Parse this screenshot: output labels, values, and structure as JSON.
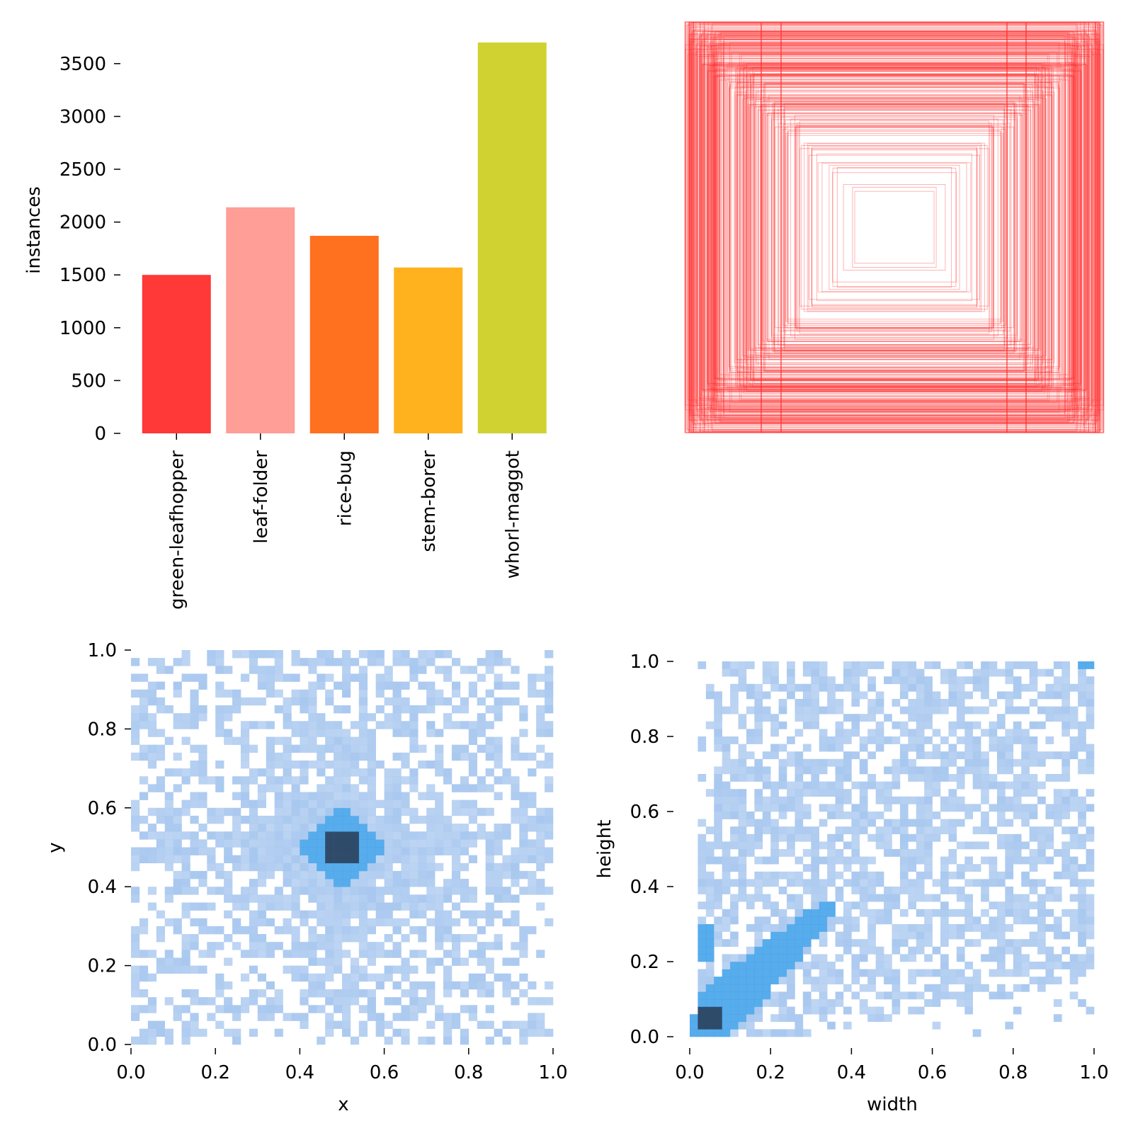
{
  "chart_data": [
    {
      "panel": "class-counts",
      "type": "bar",
      "categories": [
        "green-leafhopper",
        "leaf-folder",
        "rice-bug",
        "stem-borer",
        "whorl-maggot"
      ],
      "values": [
        1500,
        2140,
        1870,
        1570,
        3700
      ],
      "colors": [
        "#ff3838",
        "#ff9d97",
        "#ff701f",
        "#ffb21d",
        "#cfd231"
      ],
      "xlabel": "",
      "ylabel": "instances",
      "yticks": [
        "0",
        "500",
        "1000",
        "1500",
        "2000",
        "2500",
        "3000",
        "3500"
      ],
      "ylim": [
        0,
        3700
      ],
      "grid": false
    },
    {
      "panel": "box-outlines",
      "type": "other",
      "description_free": true,
      "color": "#ff2a2a",
      "axes_visible": false
    },
    {
      "panel": "center-histogram",
      "type": "heatmap",
      "xlabel": "x",
      "ylabel": "y",
      "xlim": [
        0.0,
        1.0
      ],
      "ylim": [
        0.0,
        1.0
      ],
      "xticks": [
        "0.0",
        "0.2",
        "0.4",
        "0.6",
        "0.8",
        "1.0"
      ],
      "yticks": [
        "0.0",
        "0.2",
        "0.4",
        "0.6",
        "0.8",
        "1.0"
      ],
      "peak": [
        0.5,
        0.5
      ],
      "colors": {
        "low": "#a9c8ef",
        "mid": "#3a9de9",
        "high": "#2f4b6a"
      }
    },
    {
      "panel": "size-histogram",
      "type": "heatmap",
      "xlabel": "width",
      "ylabel": "height",
      "xlim": [
        0.0,
        1.0
      ],
      "ylim": [
        0.0,
        1.0
      ],
      "xticks": [
        "0.0",
        "0.2",
        "0.4",
        "0.6",
        "0.8",
        "1.0"
      ],
      "yticks": [
        "0.0",
        "0.2",
        "0.4",
        "0.6",
        "0.8",
        "1.0"
      ],
      "peak": [
        0.05,
        0.05
      ],
      "colors": {
        "low": "#a9c8ef",
        "mid": "#3a9de9",
        "high": "#2f4b6a"
      }
    }
  ]
}
